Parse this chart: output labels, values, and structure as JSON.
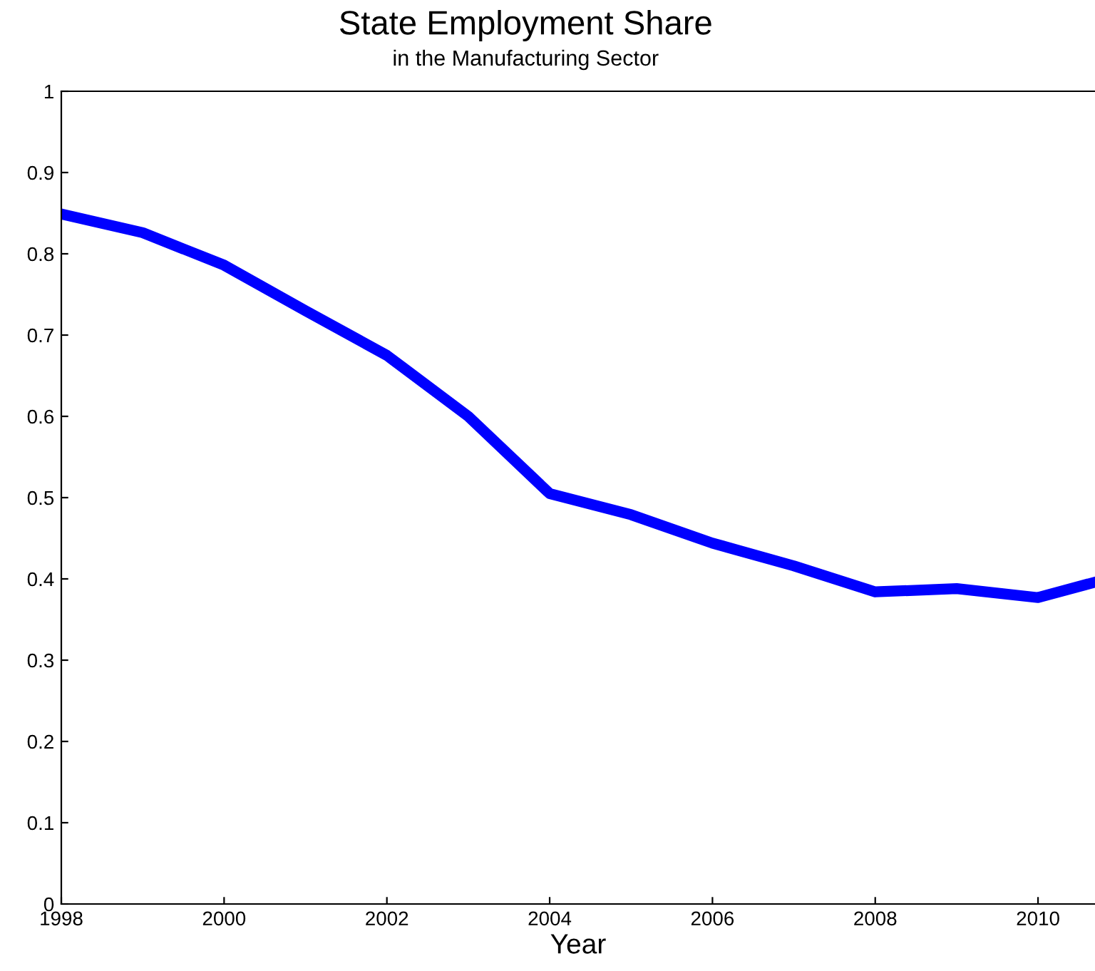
{
  "chart_data": {
    "type": "line",
    "title": "State Employment Share",
    "subtitle": "in the Manufacturing Sector",
    "xlabel": "Year",
    "x": [
      1998,
      1999,
      2000,
      2001,
      2002,
      2003,
      2004,
      2005,
      2006,
      2007,
      2008,
      2009,
      2010,
      2010.7
    ],
    "series": [
      {
        "color": "#0000ff",
        "values": [
          0.849,
          0.826,
          0.786,
          0.73,
          0.675,
          0.6,
          0.505,
          0.479,
          0.444,
          0.416,
          0.384,
          0.388,
          0.377,
          0.396
        ]
      }
    ],
    "xlim": [
      1998,
      2010.7
    ],
    "xticks": [
      1998,
      2000,
      2002,
      2004,
      2006,
      2008,
      2010
    ],
    "ylim": [
      0,
      1
    ],
    "yticks": [
      0,
      0.1,
      0.2,
      0.3,
      0.4,
      0.5,
      0.6,
      0.7,
      0.8,
      0.9,
      1
    ],
    "grid": false,
    "legend": false,
    "marker": "none",
    "line_style": "solid"
  }
}
